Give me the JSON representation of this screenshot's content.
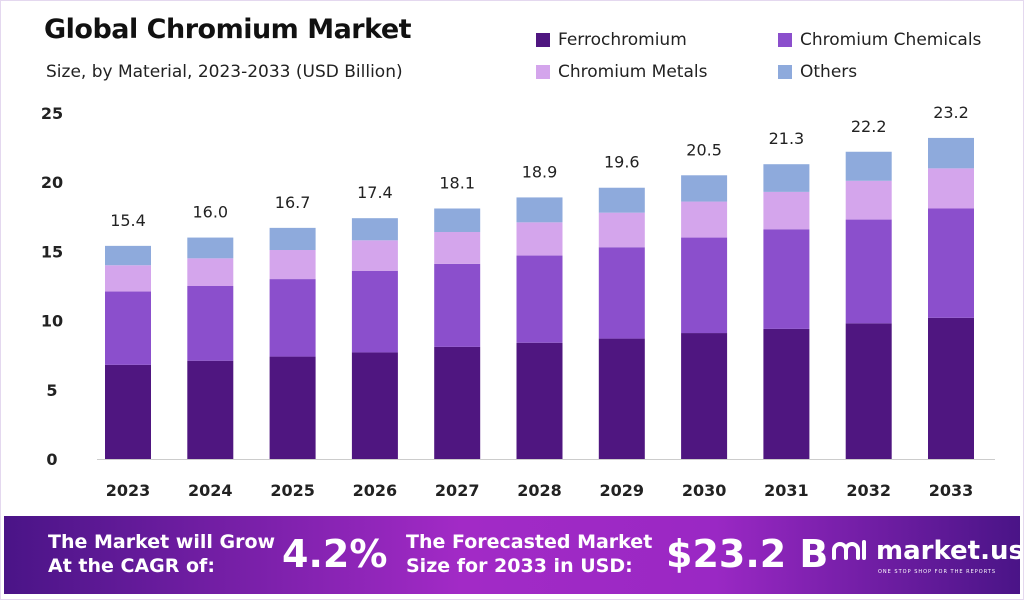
{
  "chart_data": {
    "type": "bar",
    "stacked": true,
    "title": "Global Chromium Market",
    "subtitle": "Size, by Material, 2023-2033 (USD Billion)",
    "xlabel": "",
    "ylabel": "",
    "ylim": [
      0,
      25
    ],
    "yticks": [
      0,
      5,
      10,
      15,
      20,
      25
    ],
    "grid": false,
    "legend_position": "top-right",
    "categories": [
      "2023",
      "2024",
      "2025",
      "2026",
      "2027",
      "2028",
      "2029",
      "2030",
      "2031",
      "2032",
      "2033"
    ],
    "totals": [
      "15.4",
      "16.0",
      "16.7",
      "17.4",
      "18.1",
      "18.9",
      "19.6",
      "20.5",
      "21.3",
      "22.2",
      "23.2"
    ],
    "series": [
      {
        "name": "Ferrochromium",
        "color": "#4f1680",
        "values": [
          6.8,
          7.1,
          7.4,
          7.7,
          8.1,
          8.4,
          8.7,
          9.1,
          9.4,
          9.8,
          10.2
        ]
      },
      {
        "name": "Chromium Chemicals",
        "color": "#8b4fcc",
        "values": [
          5.3,
          5.4,
          5.6,
          5.9,
          6.0,
          6.3,
          6.6,
          6.9,
          7.2,
          7.5,
          7.9
        ]
      },
      {
        "name": "Chromium Metals",
        "color": "#d4a5ec",
        "values": [
          1.9,
          2.0,
          2.1,
          2.2,
          2.3,
          2.4,
          2.5,
          2.6,
          2.7,
          2.8,
          2.9
        ]
      },
      {
        "name": "Others",
        "color": "#8eaadc",
        "values": [
          1.4,
          1.5,
          1.6,
          1.6,
          1.7,
          1.8,
          1.8,
          1.9,
          2.0,
          2.1,
          2.2
        ]
      }
    ]
  },
  "banner": {
    "cagr_label_line1": "The Market will Grow",
    "cagr_label_line2": "At the CAGR of:",
    "cagr_value": "4.2%",
    "forecast_label_line1": "The Forecasted Market",
    "forecast_label_line2": "Size for 2033 in USD:",
    "forecast_value": "$23.2 B",
    "brand": "market.us",
    "brand_tagline": "ONE STOP SHOP FOR THE REPORTS"
  }
}
